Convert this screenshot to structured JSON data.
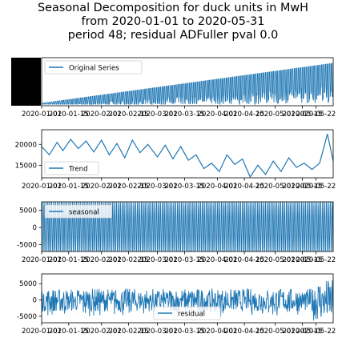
{
  "title_lines": [
    "Seasonal Decomposition for duck units in MwH",
    "from 2020-01-01 to 2020-05-31",
    "period 48;  residual ADFuller pval 0.0"
  ],
  "colors": {
    "series": "#1f77b4",
    "axes": "#000000",
    "background": "#ffffff"
  },
  "chart_data": [
    {
      "type": "line",
      "panel": "observed",
      "series": [
        {
          "name": "Original Series",
          "x_start": "2020-01-01",
          "x_end": "2020-05-31",
          "trend_start": 0,
          "trend_end": 100,
          "envelope": "widening"
        }
      ],
      "x_ticks": [
        "2020-01-01",
        "2020-01-15",
        "2020-02-01",
        "2020-02-15",
        "2020-03-01",
        "2020-03-15",
        "2020-04-01",
        "2020-04-15",
        "2020-05-01",
        "2020-05-15",
        "2020-05-22"
      ],
      "x_tick_labels": [
        "2020-01-01",
        "2020-01-15",
        "2020-02-01",
        "2020-02-15",
        "2020-03-01",
        "2020-03-15",
        "2020-04-01",
        "2020-04-15",
        "2020-05-01",
        "2020-05-15",
        "2020-05-22"
      ],
      "y_ticks": [],
      "legend": "top-left",
      "grid": false
    },
    {
      "type": "line",
      "panel": "trend",
      "series": [
        {
          "name": "Trend",
          "x": [
            "2020-01-01",
            "2020-01-05",
            "2020-01-09",
            "2020-01-12",
            "2020-01-16",
            "2020-01-20",
            "2020-01-24",
            "2020-01-28",
            "2020-02-01",
            "2020-02-05",
            "2020-02-09",
            "2020-02-13",
            "2020-02-17",
            "2020-02-21",
            "2020-02-25",
            "2020-03-01",
            "2020-03-05",
            "2020-03-09",
            "2020-03-13",
            "2020-03-17",
            "2020-03-21",
            "2020-03-25",
            "2020-03-29",
            "2020-04-02",
            "2020-04-06",
            "2020-04-10",
            "2020-04-14",
            "2020-04-18",
            "2020-04-22",
            "2020-04-26",
            "2020-04-30",
            "2020-05-04",
            "2020-05-08",
            "2020-05-12",
            "2020-05-16",
            "2020-05-20",
            "2020-05-24",
            "2020-05-28",
            "2020-05-31"
          ],
          "values": [
            19500,
            17500,
            20500,
            18500,
            21200,
            19000,
            20800,
            18200,
            21000,
            17500,
            20200,
            16800,
            21000,
            18000,
            20000,
            17000,
            19800,
            16500,
            19500,
            16200,
            17500,
            14200,
            15500,
            13500,
            17500,
            15200,
            16500,
            12200,
            15000,
            12800,
            16000,
            13500,
            16800,
            14500,
            15500,
            14000,
            15500,
            22500,
            16000
          ]
        }
      ],
      "y_ticks": [
        15000,
        20000
      ],
      "ylim": [
        12000,
        23500
      ],
      "legend": "bottom-left",
      "grid": false
    },
    {
      "type": "line",
      "panel": "seasonal",
      "series": [
        {
          "name": "seasonal",
          "amplitude": 8000,
          "cycles": 150
        }
      ],
      "y_ticks": [
        -5000,
        0,
        5000
      ],
      "ylim": [
        -7000,
        7500
      ],
      "legend": "top-left",
      "grid": false
    },
    {
      "type": "line",
      "panel": "residual",
      "series": [
        {
          "name": "residual",
          "amplitude": 3500
        }
      ],
      "y_ticks": [
        -5000,
        0,
        5000
      ],
      "ylim": [
        -7000,
        8000
      ],
      "legend": "bottom-center",
      "grid": false
    }
  ]
}
